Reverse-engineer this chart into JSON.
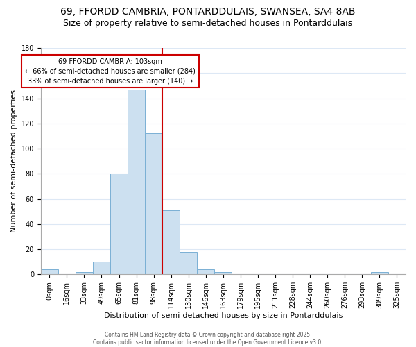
{
  "title_line1": "69, FFORDD CAMBRIA, PONTARDDULAIS, SWANSEA, SA4 8AB",
  "title_line2": "Size of property relative to semi-detached houses in Pontarddulais",
  "xlabel": "Distribution of semi-detached houses by size in Pontarddulais",
  "ylabel": "Number of semi-detached properties",
  "categories": [
    "0sqm",
    "16sqm",
    "33sqm",
    "49sqm",
    "65sqm",
    "81sqm",
    "98sqm",
    "114sqm",
    "130sqm",
    "146sqm",
    "163sqm",
    "179sqm",
    "195sqm",
    "211sqm",
    "228sqm",
    "244sqm",
    "260sqm",
    "276sqm",
    "293sqm",
    "309sqm",
    "325sqm"
  ],
  "values": [
    4,
    0,
    2,
    10,
    80,
    147,
    112,
    51,
    18,
    4,
    2,
    0,
    0,
    0,
    0,
    0,
    0,
    0,
    0,
    2,
    0
  ],
  "bar_color": "#cce0f0",
  "bar_edge_color": "#7ab0d4",
  "grid_color": "#dde8f5",
  "annotation_text_line1": "69 FFORDD CAMBRIA: 103sqm",
  "annotation_text_line2": "← 66% of semi-detached houses are smaller (284)",
  "annotation_text_line3": "33% of semi-detached houses are larger (140) →",
  "annotation_box_color": "#ffffff",
  "annotation_box_edge_color": "#cc0000",
  "red_line_color": "#cc0000",
  "red_line_x": 6.5,
  "ylim": [
    0,
    180
  ],
  "yticks": [
    0,
    20,
    40,
    60,
    80,
    100,
    120,
    140,
    160,
    180
  ],
  "footer_text": "Contains HM Land Registry data © Crown copyright and database right 2025.\nContains public sector information licensed under the Open Government Licence v3.0.",
  "background_color": "#ffffff",
  "font_size_title1": 10,
  "font_size_title2": 9,
  "font_size_axis_label": 8,
  "font_size_ticks": 7,
  "font_size_annotation": 7,
  "font_size_footer": 5.5
}
